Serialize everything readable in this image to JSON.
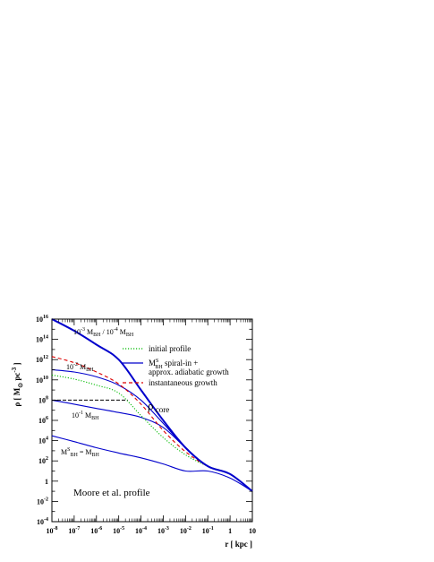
{
  "chart_data": {
    "type": "line",
    "title": "",
    "xlabel": "r [ kpc ]",
    "ylabel": "ρ [ M_⊙ pc^-3 ]",
    "xscale": "log",
    "yscale": "log",
    "xlim": [
      1e-08,
      10
    ],
    "ylim": [
      0.0001,
      1e+16
    ],
    "grid": false,
    "legend_position": "center-right",
    "x_tick_labels": [
      {
        "base": "10",
        "exp": "-8",
        "value": 1e-08
      },
      {
        "base": "10",
        "exp": "-7",
        "value": 1e-07
      },
      {
        "base": "10",
        "exp": "-6",
        "value": 1e-06
      },
      {
        "base": "10",
        "exp": "-5",
        "value": 1e-05
      },
      {
        "base": "10",
        "exp": "-4",
        "value": 0.0001
      },
      {
        "base": "10",
        "exp": "-3",
        "value": 0.001
      },
      {
        "base": "10",
        "exp": "-2",
        "value": 0.01
      },
      {
        "base": "10",
        "exp": "-1",
        "value": 0.1
      },
      {
        "base": "1",
        "exp": "",
        "value": 1
      },
      {
        "base": "10",
        "exp": "",
        "value": 10
      }
    ],
    "y_tick_labels": [
      {
        "base": "10",
        "exp": "16",
        "value": 1e+16
      },
      {
        "base": "10",
        "exp": "14",
        "value": 100000000000000.0
      },
      {
        "base": "10",
        "exp": "12",
        "value": 1000000000000.0
      },
      {
        "base": "10",
        "exp": "10",
        "value": 10000000000.0
      },
      {
        "base": "10",
        "exp": "8",
        "value": 100000000.0
      },
      {
        "base": "10",
        "exp": "6",
        "value": 1000000.0
      },
      {
        "base": "10",
        "exp": "4",
        "value": 10000.0
      },
      {
        "base": "10",
        "exp": "2",
        "value": 100.0
      },
      {
        "base": "1",
        "exp": "",
        "value": 1
      },
      {
        "base": "10",
        "exp": "-2",
        "value": 0.01
      },
      {
        "base": "10",
        "exp": "-4",
        "value": 0.0001
      }
    ],
    "legend": [
      {
        "label": "initial profile",
        "color": "#00bb00",
        "style": "dotted"
      },
      {
        "label_main": "M",
        "label_sub": "BH",
        "label_sup": "S",
        "label_rest": " spiral-in +",
        "label_line2": "approx. adiabatic growth",
        "color": "#0000cc",
        "style": "solid"
      },
      {
        "label": "instantaneous growth",
        "color": "#dd0000",
        "style": "dashed"
      }
    ],
    "annotations": {
      "curve_1e-3": {
        "text": "10",
        "sup": "-3",
        "m": " M",
        "sub": "BH",
        "mid": " / 10",
        "sup2": "-4",
        "m2": " M",
        "sub2": "BH"
      },
      "curve_1e-2": {
        "text": "10",
        "sup": "-2",
        "m": " M",
        "sub": "BH"
      },
      "curve_1e-1": {
        "text": "10",
        "sup": "-1",
        "m": " M",
        "sub": "BH"
      },
      "curve_1": {
        "m": "M",
        "sub": "BH",
        "sup": "S",
        "rest": " = M",
        "sub2": "BH"
      },
      "rho_core": {
        "rho": "ρ",
        "sub": "core"
      },
      "profile_note": "Moore et al. profile"
    },
    "rho_core_value": 100000000.0,
    "series": [
      {
        "id": "initial",
        "style": "dotted",
        "color": "#00bb00",
        "x": [
          1e-08,
          1e-07,
          1e-06,
          1e-05,
          0.0001,
          0.001,
          0.01,
          0.1,
          1,
          10
        ],
        "y": [
          30000000000.0,
          12000000000.0,
          3000000000.0,
          500000000.0,
          3000000.0,
          20000.0,
          400.0,
          30.0,
          5,
          0.1
        ]
      },
      {
        "id": "instantaneous",
        "style": "dashed",
        "color": "#dd0000",
        "x": [
          1e-08,
          1e-07,
          1e-06,
          1e-05,
          0.0001,
          0.001,
          0.01,
          0.1,
          1,
          10
        ],
        "y": [
          2000000000000.0,
          500000000000.0,
          60000000000.0,
          4000000000.0,
          40000000.0,
          100000.0,
          800.0,
          30.0,
          5,
          0.1
        ]
      },
      {
        "id": "adiabatic-1e-3",
        "style": "solid",
        "color": "#0000cc",
        "width": 2,
        "x": [
          1e-08,
          1e-07,
          1e-06,
          1e-05,
          0.0001,
          0.001,
          0.01,
          0.1,
          1,
          10
        ],
        "y": [
          1e+16,
          700000000000000.0,
          30000000000000.0,
          1000000000000.0,
          1000000000.0,
          1000000.0,
          2000.0,
          30.0,
          5,
          0.1
        ]
      },
      {
        "id": "adiabatic-1e-2",
        "style": "solid",
        "color": "#0000cc",
        "x": [
          1e-08,
          1e-07,
          1e-06,
          1e-05,
          0.0001,
          0.001,
          0.01,
          0.1,
          1,
          10
        ],
        "y": [
          100000000000.0,
          60000000000.0,
          20000000000.0,
          3000000000.0,
          100000000.0,
          500000.0,
          2000.0,
          30.0,
          5,
          0.1
        ]
      },
      {
        "id": "adiabatic-1e-1",
        "style": "solid",
        "color": "#0000cc",
        "x": [
          1e-08,
          1e-07,
          1e-06,
          1e-05,
          0.0001,
          0.001,
          0.01,
          0.1,
          1,
          10
        ],
        "y": [
          100000000.0,
          40000000.0,
          15000000.0,
          6000000.0,
          2000000.0,
          200000.0,
          2000.0,
          30.0,
          5,
          0.1
        ]
      },
      {
        "id": "adiabatic-1",
        "style": "solid",
        "color": "#0000cc",
        "x": [
          1e-08,
          1e-07,
          1e-06,
          1e-05,
          0.0001,
          0.001,
          0.01,
          0.1,
          1,
          10
        ],
        "y": [
          30000.0,
          8000.0,
          2000.0,
          600.0,
          200.0,
          50.0,
          10.0,
          10.0,
          2,
          0.1
        ]
      }
    ]
  }
}
